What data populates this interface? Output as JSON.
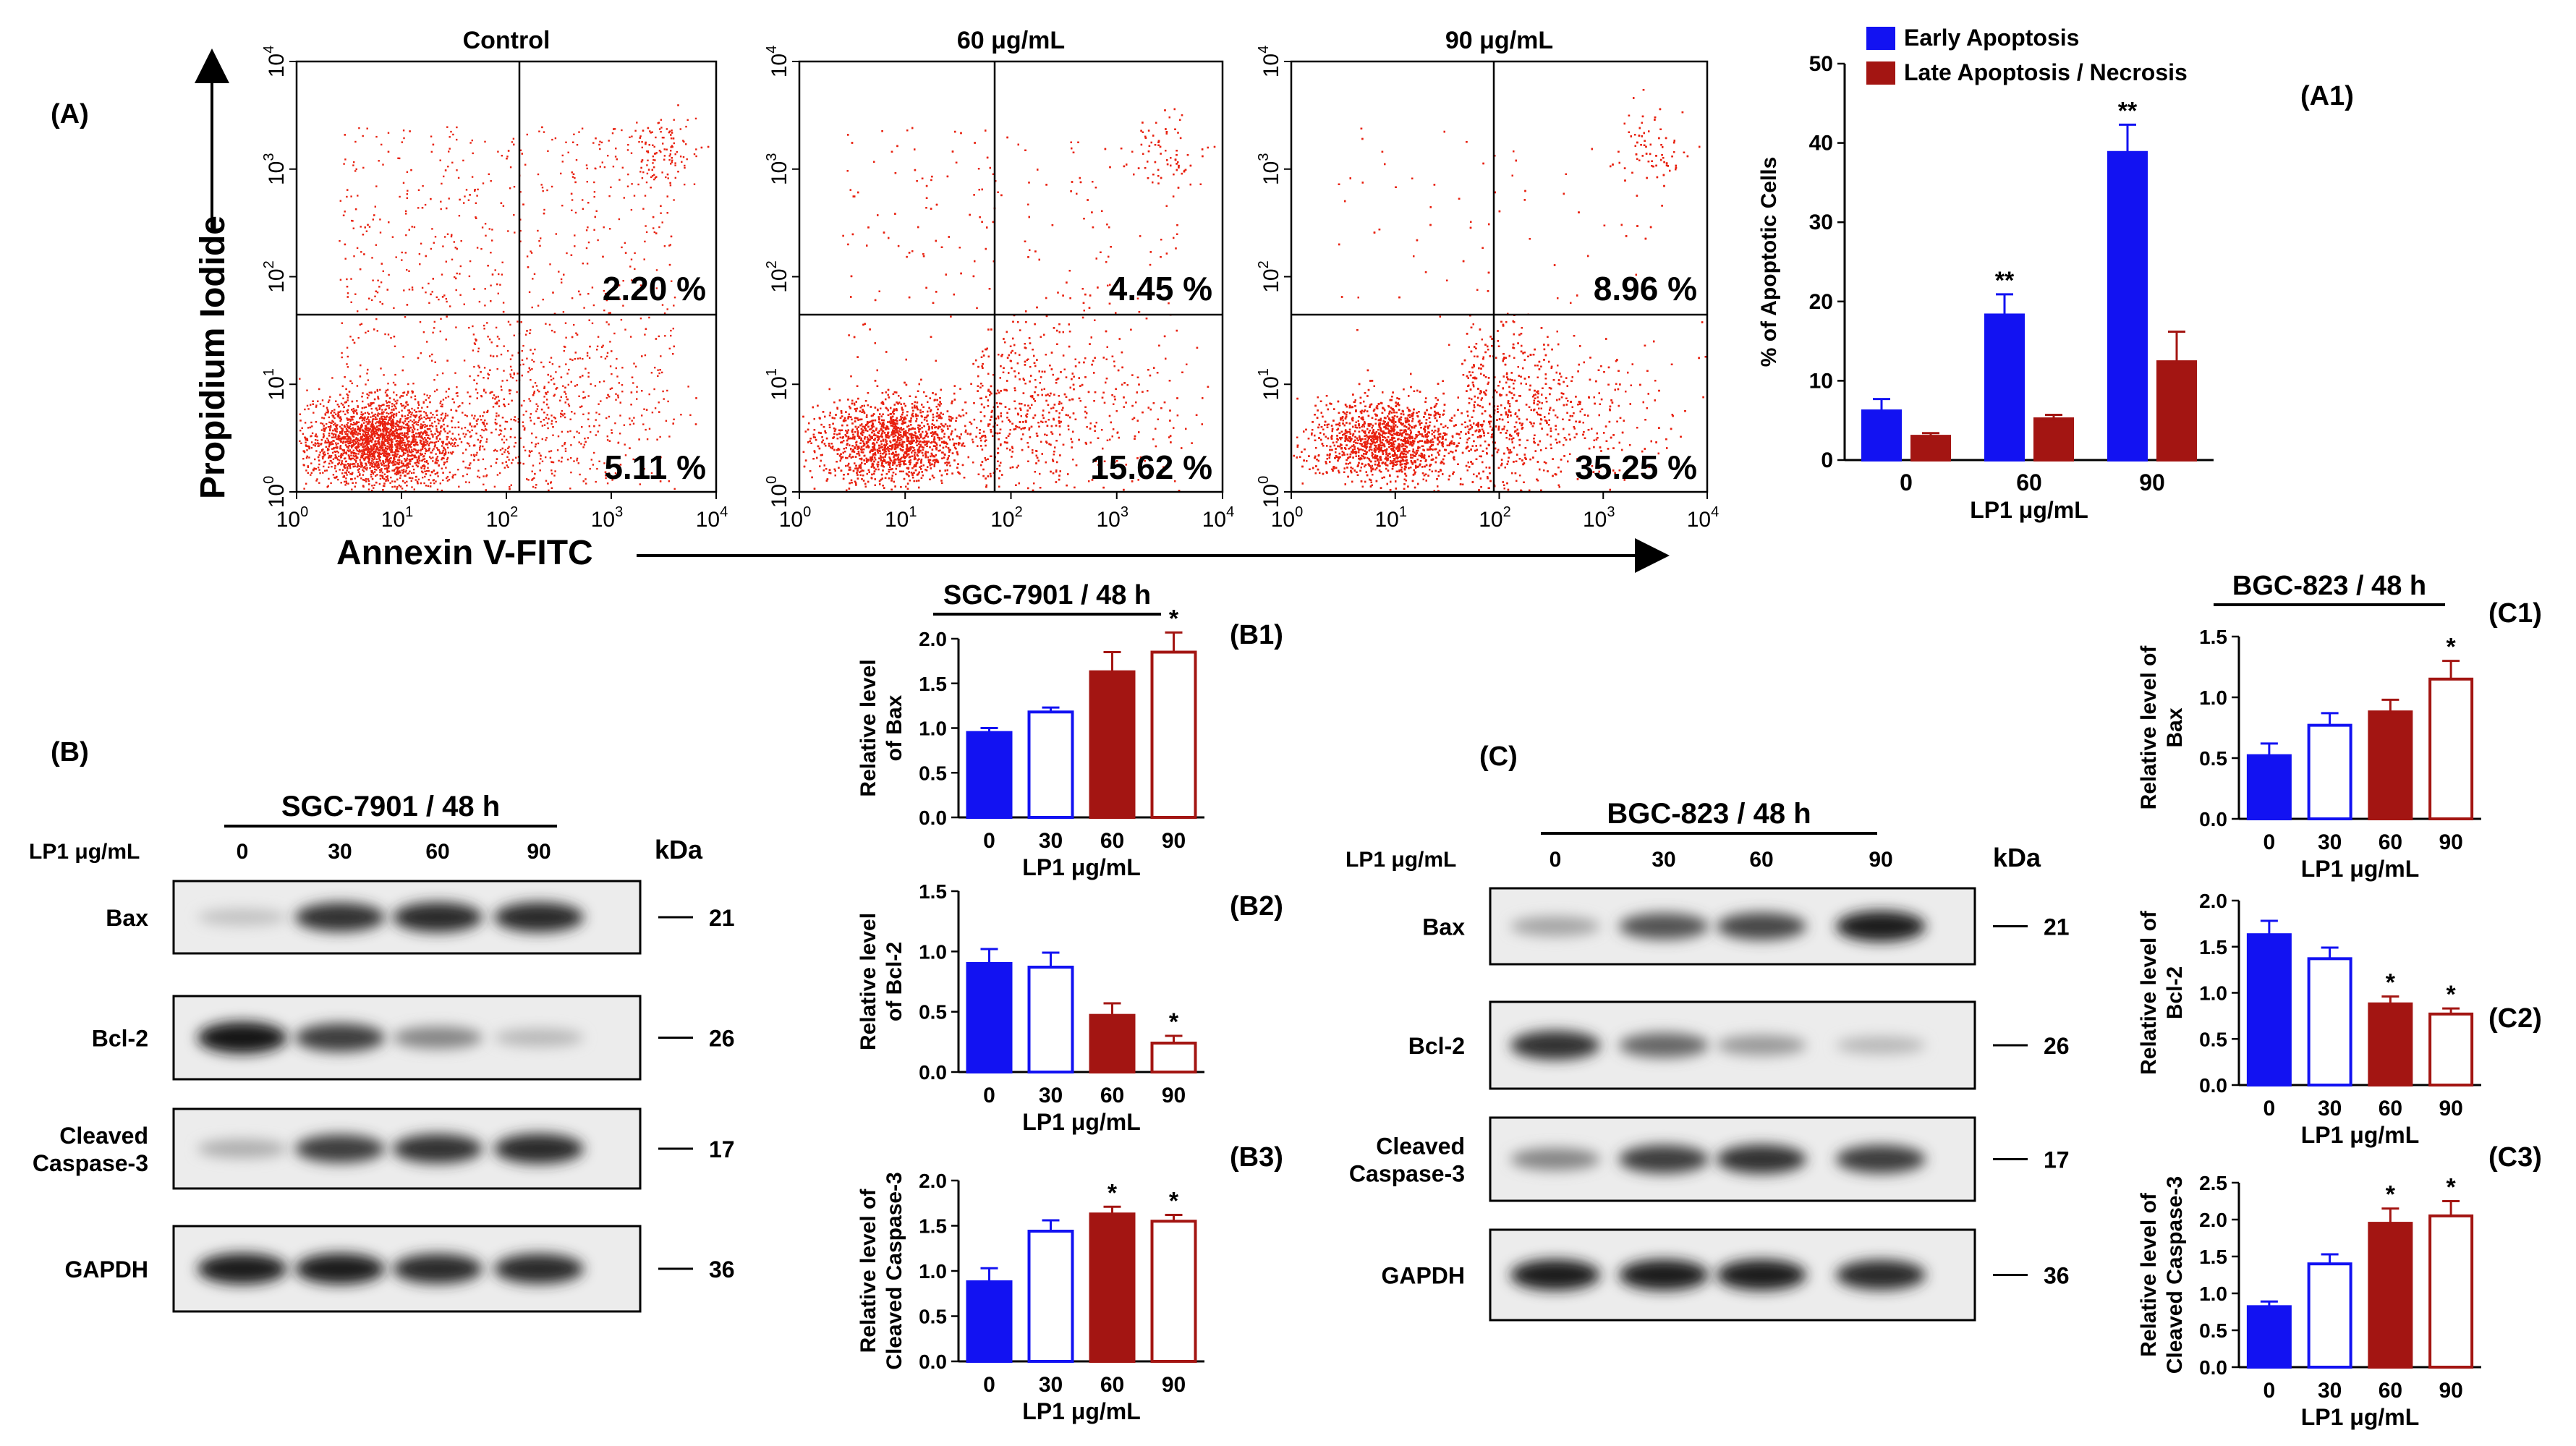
{
  "labels": {
    "A": "(A)",
    "A1": "(A1)",
    "B": "(B)",
    "C": "(C)",
    "B1": "(B1)",
    "B2": "(B2)",
    "B3": "(B3)",
    "C1": "(C1)",
    "C2": "(C2)",
    "C3": "(C3)"
  },
  "flow": {
    "ylabel": "Propidium Iodide",
    "xlabel": "Annexin V-FITC",
    "tick_base": "10",
    "tick_exps": [
      "0",
      "1",
      "2",
      "3",
      "4"
    ],
    "dot_color": "#e8210f",
    "panels": [
      {
        "title": "Control",
        "upper_right": "2.20 %",
        "lower_right": "5.11 %",
        "density": 0.35
      },
      {
        "title": "60 μg/mL",
        "upper_right": "4.45 %",
        "lower_right": "15.62 %",
        "density": 0.7
      },
      {
        "title": "90 μg/mL",
        "upper_right": "8.96 %",
        "lower_right": "35.25 %",
        "density": 1.0
      }
    ]
  },
  "colors": {
    "blue": "#1212f2",
    "red": "#a31512"
  },
  "blots": {
    "B": {
      "title": "SGC-7901 / 48 h",
      "dose_label": "LP1 μg/mL",
      "doses": [
        "0",
        "30",
        "60",
        "90"
      ],
      "kda_label": "kDa",
      "rows": [
        {
          "label": [
            "Bax"
          ],
          "kda": "21",
          "intensity": [
            0.15,
            0.85,
            0.9,
            0.9
          ]
        },
        {
          "label": [
            "Bcl-2"
          ],
          "kda": "26",
          "intensity": [
            1.0,
            0.8,
            0.45,
            0.2
          ]
        },
        {
          "label": [
            "Cleaved",
            "Caspase-3"
          ],
          "kda": "17",
          "intensity": [
            0.25,
            0.8,
            0.85,
            0.9
          ]
        },
        {
          "label": [
            "GAPDH"
          ],
          "kda": "36",
          "intensity": [
            0.95,
            0.95,
            0.9,
            0.9
          ]
        }
      ]
    },
    "C": {
      "title": "BGC-823 / 48 h",
      "dose_label": "LP1 μg/mL",
      "doses": [
        "0",
        "30",
        "60",
        "90"
      ],
      "kda_label": "kDa",
      "rows": [
        {
          "label": [
            "Bax"
          ],
          "kda": "21",
          "intensity": [
            0.3,
            0.7,
            0.75,
            0.95
          ]
        },
        {
          "label": [
            "Bcl-2"
          ],
          "kda": "26",
          "intensity": [
            0.85,
            0.6,
            0.35,
            0.2
          ]
        },
        {
          "label": [
            "Cleaved",
            "Caspase-3"
          ],
          "kda": "17",
          "intensity": [
            0.45,
            0.8,
            0.85,
            0.8
          ]
        },
        {
          "label": [
            "GAPDH"
          ],
          "kda": "36",
          "intensity": [
            0.95,
            0.95,
            0.95,
            0.9
          ]
        }
      ]
    }
  },
  "chart_data": [
    {
      "id": "A1",
      "type": "bar",
      "categories": [
        "0",
        "60",
        "90"
      ],
      "xlabel": "LP1 μg/mL",
      "ylabel": "% of Apoptotic Cells",
      "ylim": [
        0,
        50
      ],
      "yticks": [
        "0",
        "10",
        "20",
        "30",
        "40",
        "50"
      ],
      "legend": "top-left",
      "series": [
        {
          "name": "Early Apoptosis",
          "values": [
            6.2,
            18.3,
            38.8
          ],
          "errors": [
            1.5,
            2.6,
            3.5
          ],
          "sig": [
            "",
            "**",
            "**"
          ]
        },
        {
          "name": "Late Apoptosis / Necrosis",
          "values": [
            3.0,
            5.2,
            12.4
          ],
          "errors": [
            0.4,
            0.5,
            3.8
          ],
          "sig": [
            "",
            "",
            ""
          ]
        }
      ]
    },
    {
      "id": "B1",
      "type": "bar",
      "title": "SGC-7901 / 48 h",
      "categories": [
        "0",
        "30",
        "60",
        "90"
      ],
      "values": [
        0.95,
        1.18,
        1.63,
        1.85
      ],
      "errors": [
        0.05,
        0.05,
        0.22,
        0.22
      ],
      "sig": [
        "",
        "",
        "",
        "*"
      ],
      "ylabel": [
        "Relative level",
        "of Bax"
      ],
      "xlabel": "LP1 μg/mL",
      "ylim": [
        0,
        2.0
      ],
      "yticks": [
        "0.0",
        "0.5",
        "1.0",
        "1.5",
        "2.0"
      ]
    },
    {
      "id": "B2",
      "type": "bar",
      "categories": [
        "0",
        "30",
        "60",
        "90"
      ],
      "values": [
        0.9,
        0.87,
        0.47,
        0.24
      ],
      "errors": [
        0.12,
        0.12,
        0.1,
        0.06
      ],
      "sig": [
        "",
        "",
        "",
        "*"
      ],
      "ylabel": [
        "Relative level",
        "of Bcl-2"
      ],
      "xlabel": "LP1 μg/mL",
      "ylim": [
        0,
        1.5
      ],
      "yticks": [
        "0.0",
        "0.5",
        "1.0",
        "1.5"
      ]
    },
    {
      "id": "B3",
      "type": "bar",
      "categories": [
        "0",
        "30",
        "60",
        "90"
      ],
      "values": [
        0.88,
        1.44,
        1.63,
        1.55
      ],
      "errors": [
        0.15,
        0.12,
        0.08,
        0.07
      ],
      "sig": [
        "",
        "",
        "*",
        "*"
      ],
      "ylabel": [
        "Relative level of",
        "Cleaved Caspase-3"
      ],
      "xlabel": "LP1 μg/mL",
      "ylim": [
        0,
        2.0
      ],
      "yticks": [
        "0.0",
        "0.5",
        "1.0",
        "1.5",
        "2.0"
      ]
    },
    {
      "id": "C1",
      "type": "bar",
      "title": "BGC-823 / 48 h",
      "categories": [
        "0",
        "30",
        "60",
        "90"
      ],
      "values": [
        0.52,
        0.77,
        0.88,
        1.15
      ],
      "errors": [
        0.1,
        0.1,
        0.1,
        0.15
      ],
      "sig": [
        "",
        "",
        "",
        "*"
      ],
      "ylabel": [
        "Relative level of",
        "Bax"
      ],
      "xlabel": "LP1 μg/mL",
      "ylim": [
        0,
        1.5
      ],
      "yticks": [
        "0.0",
        "0.5",
        "1.0",
        "1.5"
      ]
    },
    {
      "id": "C2",
      "type": "bar",
      "categories": [
        "0",
        "30",
        "60",
        "90"
      ],
      "values": [
        1.63,
        1.37,
        0.88,
        0.77
      ],
      "errors": [
        0.15,
        0.12,
        0.08,
        0.06
      ],
      "sig": [
        "",
        "",
        "*",
        "*"
      ],
      "ylabel": [
        "Relative level of",
        "Bcl-2"
      ],
      "xlabel": "LP1 μg/mL",
      "ylim": [
        0,
        2.0
      ],
      "yticks": [
        "0.0",
        "0.5",
        "1.0",
        "1.5",
        "2.0"
      ]
    },
    {
      "id": "C3",
      "type": "bar",
      "categories": [
        "0",
        "30",
        "60",
        "90"
      ],
      "values": [
        0.82,
        1.4,
        1.95,
        2.05
      ],
      "errors": [
        0.07,
        0.13,
        0.2,
        0.2
      ],
      "sig": [
        "",
        "",
        "*",
        "*"
      ],
      "ylabel": [
        "Relative level of",
        "Cleaved Caspase-3"
      ],
      "xlabel": "LP1 μg/mL",
      "ylim": [
        0,
        2.5
      ],
      "yticks": [
        "0.0",
        "0.5",
        "1.0",
        "1.5",
        "2.0",
        "2.5"
      ]
    }
  ]
}
